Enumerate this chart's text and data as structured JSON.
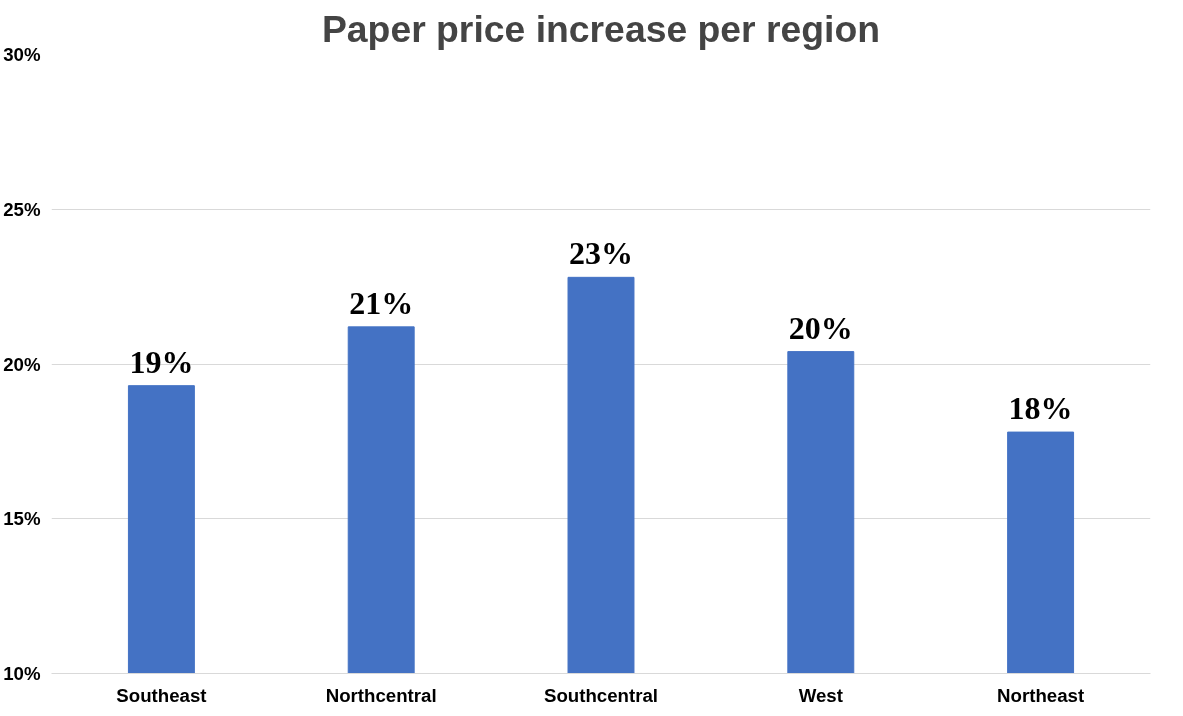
{
  "chart_data": {
    "type": "bar",
    "title": "Paper price increase per region",
    "categories": [
      "Southeast",
      "Northcentral",
      "Southcentral",
      "West",
      "Northeast"
    ],
    "values": [
      19.3,
      21.2,
      22.8,
      20.4,
      17.8
    ],
    "value_labels": [
      "19%",
      "21%",
      "23%",
      "20%",
      "18%"
    ],
    "color": "#4472c4",
    "ylim": [
      10,
      30
    ],
    "yticks": [
      {
        "value": 10,
        "label": "10%"
      },
      {
        "value": 15,
        "label": "15%"
      },
      {
        "value": 20,
        "label": "20%"
      },
      {
        "value": 25,
        "label": "25%"
      },
      {
        "value": 30,
        "label": "30%"
      }
    ],
    "grid": "y"
  }
}
